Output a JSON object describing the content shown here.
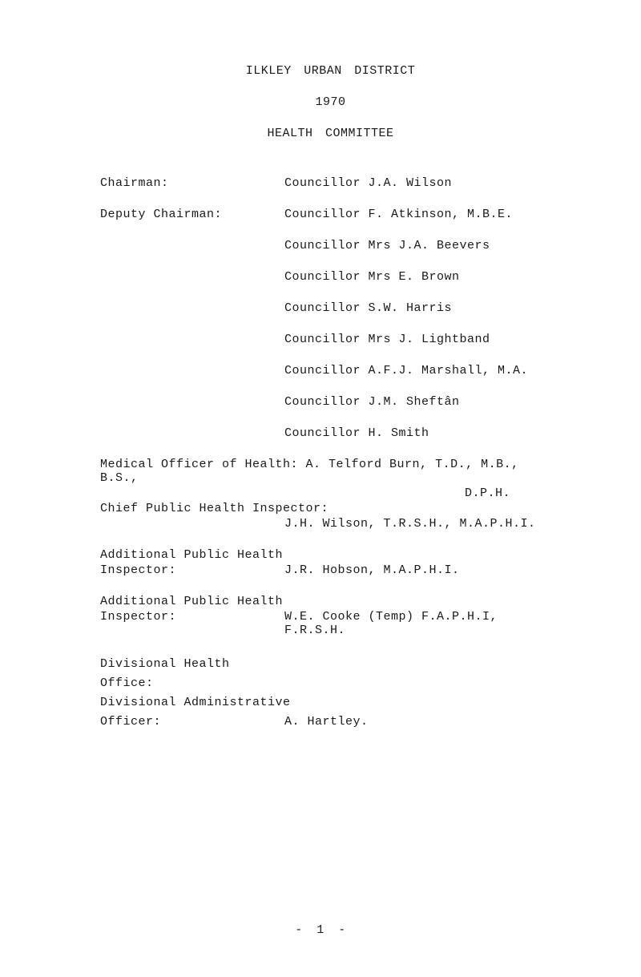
{
  "document": {
    "title": "ILKLEY URBAN DISTRICT",
    "year": "1970",
    "committee": "HEALTH COMMITTEE",
    "font_family": "Courier New",
    "font_size_pt": 11,
    "text_color": "#1a1a1a",
    "background_color": "#ffffff"
  },
  "chairman": {
    "label": "Chairman:",
    "value": "Councillor J.A. Wilson"
  },
  "deputy": {
    "label": "Deputy Chairman:",
    "value": "Councillor F. Atkinson, M.B.E."
  },
  "councillors": [
    "Councillor Mrs J.A. Beevers",
    "Councillor Mrs E. Brown",
    "Councillor S.W. Harris",
    "Councillor Mrs J. Lightband",
    "Councillor A.F.J. Marshall, M.A.",
    "Councillor J.M. Sheftân",
    "Councillor H. Smith"
  ],
  "medical_officer": {
    "line": "Medical Officer of Health: A. Telford Burn, T.D., M.B., B.S.,",
    "suffix": "D.P.H."
  },
  "chief_inspector": {
    "label": "Chief Public Health Inspector:",
    "value": "J.H. Wilson, T.R.S.H., M.A.P.H.I."
  },
  "additional_inspector_1": {
    "header": "Additional Public Health",
    "label": "Inspector:",
    "value": "J.R. Hobson, M.A.P.H.I."
  },
  "additional_inspector_2": {
    "header": "Additional Public Health",
    "label": "Inspector:",
    "value": "W.E. Cooke (Temp) F.A.P.H.I, F.R.S.H."
  },
  "divisional": {
    "line1": "Divisional Health",
    "line2": "Office:",
    "line3": "Divisional Administrative",
    "officer_label": "Officer:",
    "officer_value": "A. Hartley."
  },
  "page_number": "- 1 -"
}
